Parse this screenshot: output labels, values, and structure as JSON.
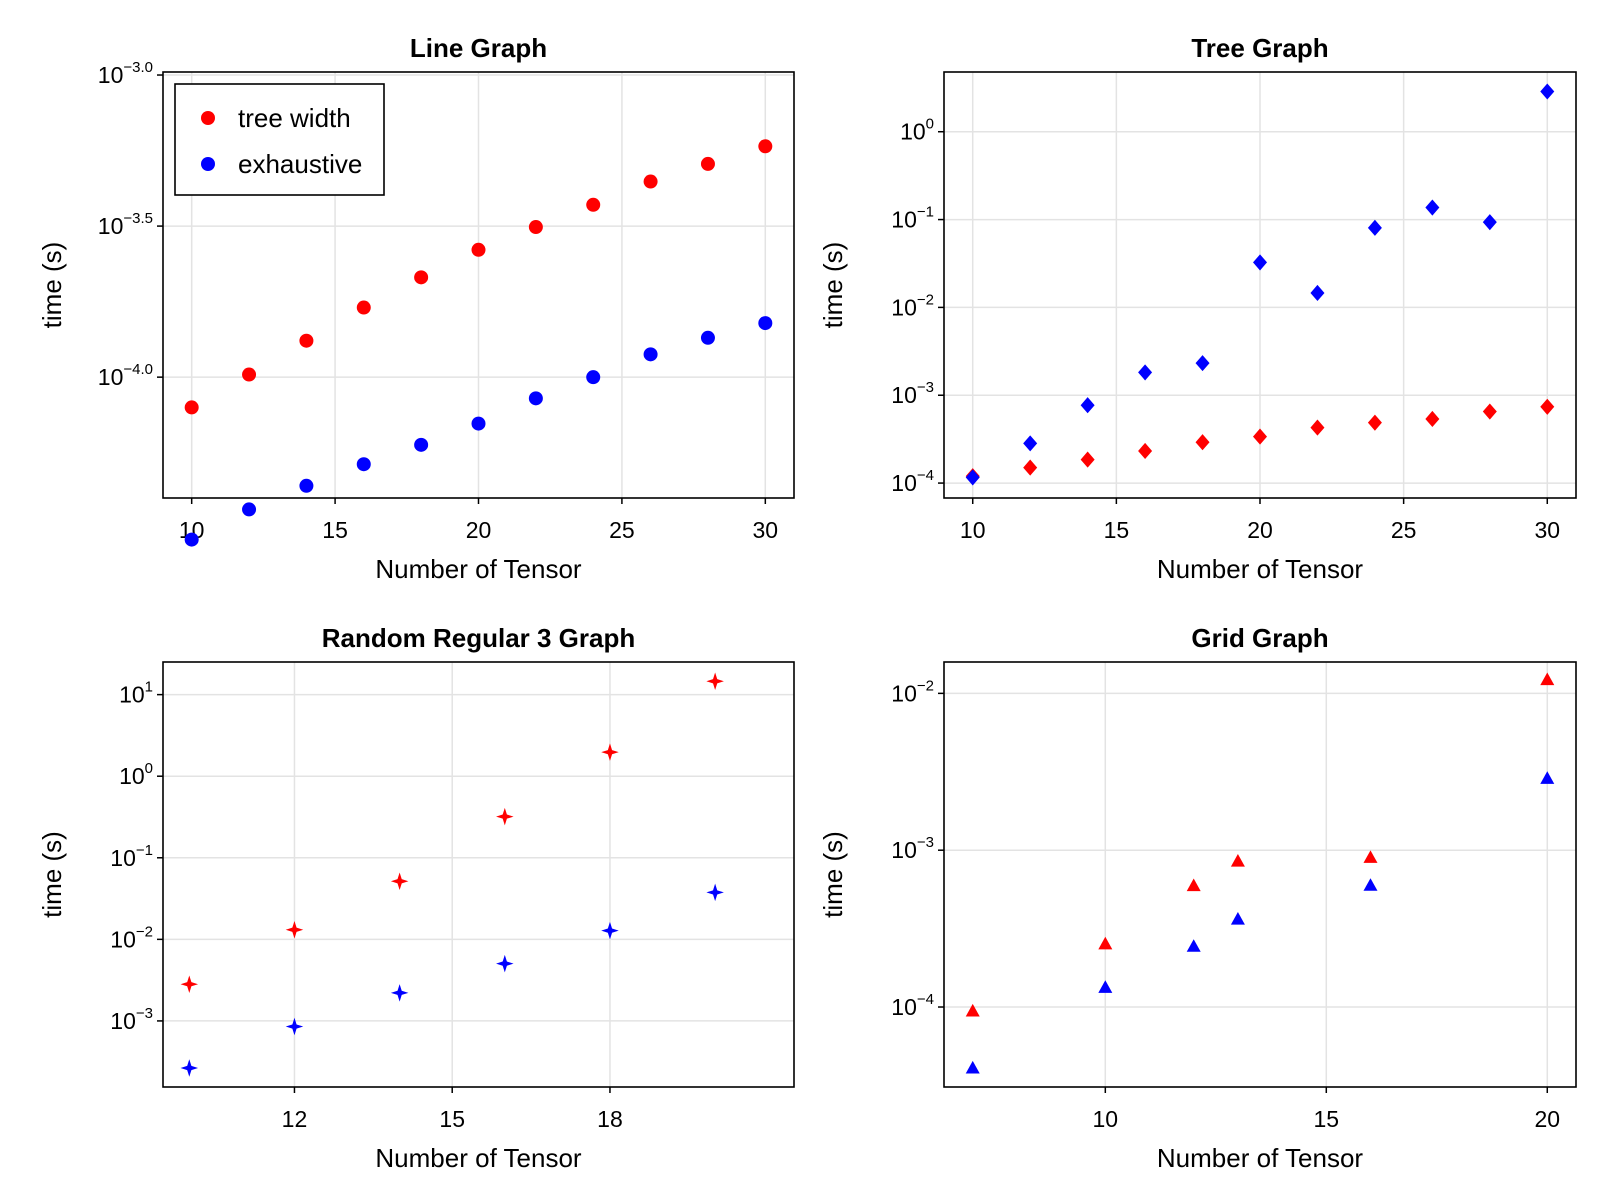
{
  "chart_data": [
    {
      "type": "scatter",
      "title": "Line Graph",
      "xlabel": "Number of Tensor",
      "ylabel": "time (s)",
      "yscale": "log10",
      "xlim": [
        9,
        31
      ],
      "ylim_log10": [
        -4.4,
        -2.99
      ],
      "marker": "circle",
      "xticks": [
        {
          "v": 10,
          "t": "10"
        },
        {
          "v": 15,
          "t": "15"
        },
        {
          "v": 20,
          "t": "20"
        },
        {
          "v": 25,
          "t": "25"
        },
        {
          "v": 30,
          "t": "30"
        }
      ],
      "yticks": [
        {
          "v": -4.0,
          "base": "10",
          "exp": "−4.0"
        },
        {
          "v": -3.5,
          "base": "10",
          "exp": "−3.5"
        },
        {
          "v": -3.0,
          "base": "10",
          "exp": "−3.0"
        }
      ],
      "grid": true,
      "legend": {
        "position": "top-left",
        "entries": [
          "tree width",
          "exhaustive"
        ]
      },
      "series": [
        {
          "name": "tree width",
          "color": "#ff0000",
          "x": [
            10,
            12,
            14,
            16,
            18,
            20,
            22,
            24,
            26,
            28,
            30
          ],
          "y": [
            7.94e-05,
            0.000102,
            0.000132,
            0.00017,
            0.000214,
            0.000264,
            0.000314,
            0.000372,
            0.000444,
            0.000508,
            0.000581
          ]
        },
        {
          "name": "exhaustive",
          "color": "#0000ff",
          "x": [
            10,
            12,
            14,
            16,
            18,
            20,
            22,
            24,
            26,
            28,
            30
          ],
          "y": [
            2.9e-05,
            3.65e-05,
            4.37e-05,
            5.15e-05,
            5.97e-05,
            7.02e-05,
            8.51e-05,
            0.0001,
            0.000119,
            0.000135,
            0.000151
          ]
        }
      ]
    },
    {
      "type": "scatter",
      "title": "Tree Graph",
      "xlabel": "Number of Tensor",
      "ylabel": "time (s)",
      "yscale": "log10",
      "xlim": [
        9,
        31
      ],
      "ylim_log10": [
        -4.17,
        0.68
      ],
      "marker": "diamond",
      "xticks": [
        {
          "v": 10,
          "t": "10"
        },
        {
          "v": 15,
          "t": "15"
        },
        {
          "v": 20,
          "t": "20"
        },
        {
          "v": 25,
          "t": "25"
        },
        {
          "v": 30,
          "t": "30"
        }
      ],
      "yticks": [
        {
          "v": -4,
          "base": "10",
          "exp": "−4"
        },
        {
          "v": -3,
          "base": "10",
          "exp": "−3"
        },
        {
          "v": -2,
          "base": "10",
          "exp": "−2"
        },
        {
          "v": -1,
          "base": "10",
          "exp": "−1"
        },
        {
          "v": 0,
          "base": "10",
          "exp": "0"
        }
      ],
      "grid": true,
      "series": [
        {
          "name": "tree width",
          "color": "#ff0000",
          "x": [
            10,
            12,
            14,
            16,
            18,
            20,
            22,
            24,
            26,
            28,
            30
          ],
          "y": [
            0.00012,
            0.00015,
            0.000185,
            0.000232,
            0.000292,
            0.000338,
            0.000428,
            0.000487,
            0.000537,
            0.000652,
            0.000739
          ]
        },
        {
          "name": "exhaustive",
          "color": "#0000ff",
          "x": [
            10,
            12,
            14,
            16,
            18,
            20,
            22,
            24,
            26,
            28,
            30
          ],
          "y": [
            0.000116,
            0.000283,
            0.00077,
            0.00182,
            0.00232,
            0.0325,
            0.0146,
            0.0805,
            0.137,
            0.0934,
            2.87
          ]
        }
      ]
    },
    {
      "type": "scatter",
      "title": "Random Regular 3 Graph",
      "xlabel": "Number of Tensor",
      "ylabel": "time (s)",
      "yscale": "log10",
      "xlim": [
        9.5,
        21.5
      ],
      "ylim_log10": [
        -3.81,
        1.4
      ],
      "marker": "star4",
      "xticks": [
        {
          "v": 12,
          "t": "12"
        },
        {
          "v": 15,
          "t": "15"
        },
        {
          "v": 18,
          "t": "18"
        }
      ],
      "yticks": [
        {
          "v": -3,
          "base": "10",
          "exp": "−3"
        },
        {
          "v": -2,
          "base": "10",
          "exp": "−2"
        },
        {
          "v": -1,
          "base": "10",
          "exp": "−1"
        },
        {
          "v": 0,
          "base": "10",
          "exp": "0"
        },
        {
          "v": 1,
          "base": "10",
          "exp": "1"
        }
      ],
      "grid": true,
      "series": [
        {
          "name": "tree width",
          "color": "#ff0000",
          "x": [
            10,
            12,
            14,
            16,
            18,
            20
          ],
          "y": [
            0.00282,
            0.0131,
            0.0515,
            0.32,
            1.97,
            14.6
          ]
        },
        {
          "name": "exhaustive",
          "color": "#0000ff",
          "x": [
            10,
            12,
            14,
            16,
            18,
            20
          ],
          "y": [
            0.000265,
            0.000853,
            0.00221,
            0.00504,
            0.0128,
            0.0376
          ]
        }
      ]
    },
    {
      "type": "scatter",
      "title": "Grid Graph",
      "xlabel": "Number of Tensor",
      "ylabel": "time (s)",
      "yscale": "log10",
      "xlim": [
        6.35,
        20.65
      ],
      "ylim_log10": [
        -4.51,
        -1.8
      ],
      "marker": "triangle",
      "xticks": [
        {
          "v": 10,
          "t": "10"
        },
        {
          "v": 15,
          "t": "15"
        },
        {
          "v": 20,
          "t": "20"
        }
      ],
      "yticks": [
        {
          "v": -4,
          "base": "10",
          "exp": "−4"
        },
        {
          "v": -3,
          "base": "10",
          "exp": "−3"
        },
        {
          "v": -2,
          "base": "10",
          "exp": "−2"
        }
      ],
      "grid": true,
      "series": [
        {
          "name": "tree width",
          "color": "#ff0000",
          "x": [
            7,
            10,
            12,
            13,
            16,
            20
          ],
          "y": [
            9.4e-05,
            0.000252,
            0.000592,
            0.000849,
            0.000896,
            0.0122
          ]
        },
        {
          "name": "exhaustive",
          "color": "#0000ff",
          "x": [
            7,
            10,
            12,
            13,
            16,
            20
          ],
          "y": [
            4.07e-05,
            0.000133,
            0.000243,
            0.000362,
            0.000595,
            0.00286
          ]
        }
      ]
    }
  ]
}
